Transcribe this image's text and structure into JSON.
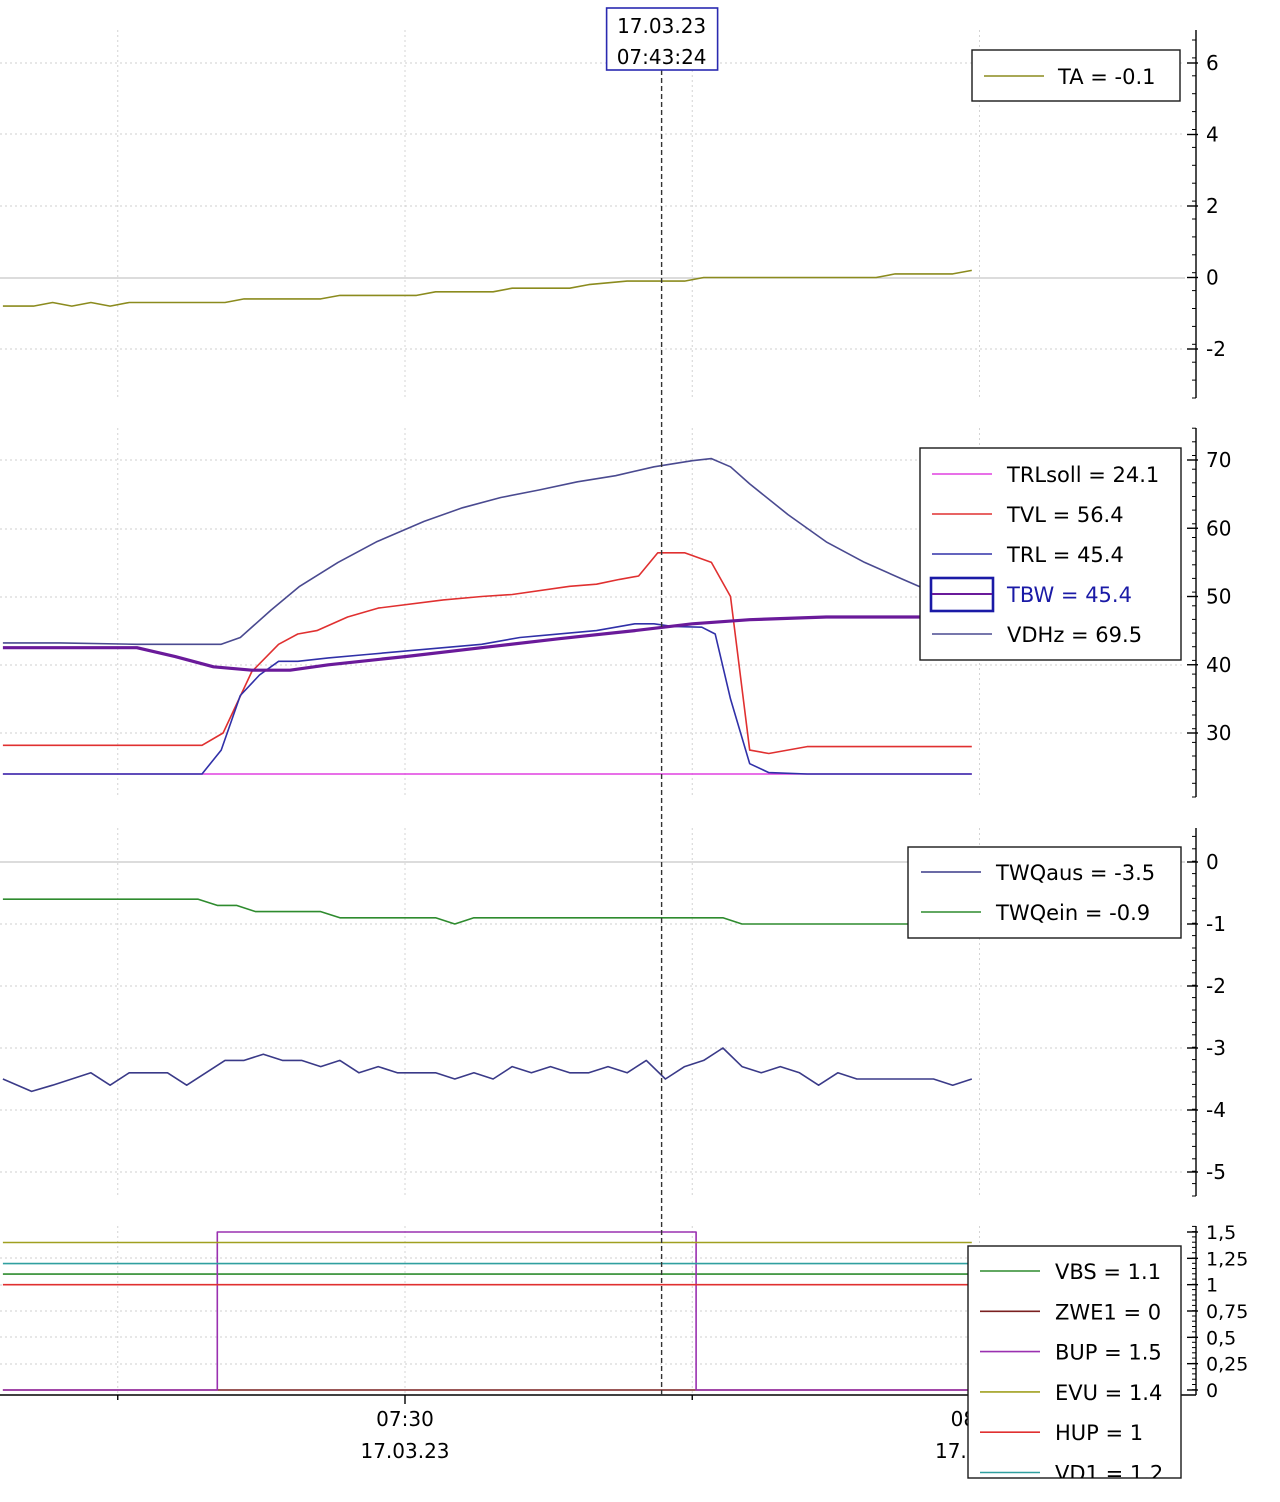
{
  "cursor": {
    "date": "17.03.23",
    "time": "07:43:24",
    "x_minutes": 43.4
  },
  "x_axis": {
    "ticks": [
      {
        "x": 30,
        "time": "07:30",
        "date": "17.03.23"
      },
      {
        "x": 60,
        "time": "08:00",
        "date": "17.03.23"
      }
    ]
  },
  "chart_data": [
    {
      "type": "line",
      "x_unit": "minutes after 07:00",
      "ylim": [
        -3.3,
        6.9
      ],
      "yticks": [
        "6",
        "4",
        "2",
        "0",
        "-2"
      ],
      "ytick_values": [
        6,
        4,
        2,
        0,
        -2
      ],
      "legend": "top-right",
      "series": [
        {
          "name": "TA = -0.1",
          "color": "#8b8b1e",
          "points": [
            [
              9,
              -0.8
            ],
            [
              10.6,
              -0.8
            ],
            [
              11.6,
              -0.7
            ],
            [
              12.6,
              -0.8
            ],
            [
              13.6,
              -0.7
            ],
            [
              14.6,
              -0.8
            ],
            [
              15.6,
              -0.7
            ],
            [
              20.6,
              -0.7
            ],
            [
              21.6,
              -0.6
            ],
            [
              25.6,
              -0.6
            ],
            [
              26.6,
              -0.5
            ],
            [
              30.6,
              -0.5
            ],
            [
              31.6,
              -0.4
            ],
            [
              34.6,
              -0.4
            ],
            [
              35.6,
              -0.3
            ],
            [
              38.6,
              -0.3
            ],
            [
              39.6,
              -0.2
            ],
            [
              41.6,
              -0.1
            ],
            [
              44.6,
              -0.1
            ],
            [
              45.6,
              0
            ],
            [
              54.6,
              0
            ],
            [
              55.6,
              0.1
            ],
            [
              58.6,
              0.1
            ],
            [
              59.6,
              0.2
            ]
          ]
        }
      ]
    },
    {
      "type": "line",
      "x_unit": "minutes after 07:00",
      "ylim": [
        21.5,
        75.5
      ],
      "yticks": [
        "70",
        "60",
        "50",
        "40",
        "30"
      ],
      "ytick_values": [
        70,
        60,
        50,
        40,
        30
      ],
      "legend": "right",
      "series": [
        {
          "name": "TRLsoll = 24.1",
          "color": "#e040e0",
          "points": [
            [
              9,
              24
            ],
            [
              59.6,
              24
            ]
          ]
        },
        {
          "name": "TVL = 56.4",
          "color": "#e03030",
          "points": [
            [
              9,
              28.2
            ],
            [
              19.4,
              28.2
            ],
            [
              20.5,
              30
            ],
            [
              22,
              39
            ],
            [
              23.4,
              43
            ],
            [
              24.4,
              44.5
            ],
            [
              25.4,
              45
            ],
            [
              27,
              47
            ],
            [
              28.6,
              48.3
            ],
            [
              32,
              49.5
            ],
            [
              34,
              50
            ],
            [
              35.6,
              50.3
            ],
            [
              38.6,
              51.5
            ],
            [
              40,
              51.8
            ],
            [
              41.2,
              52.5
            ],
            [
              42.2,
              53
            ],
            [
              43.2,
              56.4
            ],
            [
              44.6,
              56.4
            ],
            [
              46,
              55
            ],
            [
              47,
              50
            ],
            [
              48,
              27.5
            ],
            [
              49,
              27
            ],
            [
              51,
              28
            ],
            [
              59.6,
              28
            ]
          ]
        },
        {
          "name": "TRL = 45.4",
          "color": "#3030a8",
          "points": [
            [
              9,
              24
            ],
            [
              19.4,
              24
            ],
            [
              20.4,
              27.5
            ],
            [
              21.4,
              35.5
            ],
            [
              22.4,
              38.5
            ],
            [
              23.4,
              40.5
            ],
            [
              24.4,
              40.5
            ],
            [
              26,
              41
            ],
            [
              28,
              41.5
            ],
            [
              30,
              42
            ],
            [
              34,
              43
            ],
            [
              36,
              44
            ],
            [
              40,
              45
            ],
            [
              42,
              46
            ],
            [
              43,
              46
            ],
            [
              44,
              45.6
            ],
            [
              45.5,
              45.5
            ],
            [
              46.2,
              44.5
            ],
            [
              47,
              35
            ],
            [
              48,
              25.5
            ],
            [
              49,
              24.2
            ],
            [
              51,
              24
            ],
            [
              59.6,
              24
            ]
          ]
        },
        {
          "name": "TBW = 45.4",
          "color": "#6a1a9a",
          "width": 3.2,
          "points": [
            [
              9,
              42.5
            ],
            [
              16,
              42.5
            ],
            [
              18,
              41.2
            ],
            [
              20,
              39.7
            ],
            [
              22,
              39.2
            ],
            [
              24,
              39.2
            ],
            [
              26,
              40
            ],
            [
              30,
              41.2
            ],
            [
              34,
              42.5
            ],
            [
              38,
              43.8
            ],
            [
              42,
              45
            ],
            [
              45,
              46
            ],
            [
              48,
              46.6
            ],
            [
              52,
              47
            ],
            [
              56,
              47
            ],
            [
              59.6,
              47
            ]
          ]
        },
        {
          "name": "VDHz = 69.5",
          "color": "#4a4a90",
          "points": [
            [
              9,
              43.2
            ],
            [
              12,
              43.2
            ],
            [
              16,
              43
            ],
            [
              19,
              43
            ],
            [
              20.4,
              43
            ],
            [
              21.4,
              44
            ],
            [
              23,
              48
            ],
            [
              24.5,
              51.5
            ],
            [
              26.5,
              55
            ],
            [
              28.5,
              58
            ],
            [
              31,
              61
            ],
            [
              33,
              63
            ],
            [
              35,
              64.5
            ],
            [
              37,
              65.6
            ],
            [
              39,
              66.8
            ],
            [
              41,
              67.7
            ],
            [
              43,
              69
            ],
            [
              45,
              69.9
            ],
            [
              46,
              70.2
            ],
            [
              47,
              69
            ],
            [
              48,
              66.5
            ],
            [
              50,
              62
            ],
            [
              52,
              58
            ],
            [
              54,
              55
            ],
            [
              56,
              52.5
            ],
            [
              57.4,
              50.8
            ],
            [
              59,
              49.5
            ]
          ]
        }
      ]
    },
    {
      "type": "line",
      "x_unit": "minutes after 07:00",
      "ylim": [
        -5.5,
        0.55
      ],
      "yticks": [
        "0",
        "-1",
        "-2",
        "-3",
        "-4",
        "-5"
      ],
      "ytick_values": [
        0,
        -1,
        -2,
        -3,
        -4,
        -5
      ],
      "legend": "top-right",
      "series": [
        {
          "name": "TWQaus = -3.5",
          "color": "#3a3a88",
          "points": [
            [
              9,
              -3.5
            ],
            [
              10.5,
              -3.7
            ],
            [
              11.6,
              -3.6
            ],
            [
              13.6,
              -3.4
            ],
            [
              14.6,
              -3.6
            ],
            [
              15.6,
              -3.4
            ],
            [
              17.6,
              -3.4
            ],
            [
              18.6,
              -3.6
            ],
            [
              20.6,
              -3.2
            ],
            [
              21.6,
              -3.2
            ],
            [
              22.6,
              -3.1
            ],
            [
              23.6,
              -3.2
            ],
            [
              24.6,
              -3.2
            ],
            [
              25.6,
              -3.3
            ],
            [
              26.6,
              -3.2
            ],
            [
              27.6,
              -3.4
            ],
            [
              28.6,
              -3.3
            ],
            [
              29.6,
              -3.4
            ],
            [
              31.6,
              -3.4
            ],
            [
              32.6,
              -3.5
            ],
            [
              33.6,
              -3.4
            ],
            [
              34.6,
              -3.5
            ],
            [
              35.6,
              -3.3
            ],
            [
              36.6,
              -3.4
            ],
            [
              37.6,
              -3.3
            ],
            [
              38.6,
              -3.4
            ],
            [
              39.6,
              -3.4
            ],
            [
              40.6,
              -3.3
            ],
            [
              41.6,
              -3.4
            ],
            [
              42.6,
              -3.2
            ],
            [
              43.6,
              -3.5
            ],
            [
              44.6,
              -3.3
            ],
            [
              45.6,
              -3.2
            ],
            [
              46.6,
              -3
            ],
            [
              47.6,
              -3.3
            ],
            [
              48.6,
              -3.4
            ],
            [
              49.6,
              -3.3
            ],
            [
              50.6,
              -3.4
            ],
            [
              51.6,
              -3.6
            ],
            [
              52.6,
              -3.4
            ],
            [
              53.6,
              -3.5
            ],
            [
              57.6,
              -3.5
            ],
            [
              58.6,
              -3.6
            ],
            [
              59.6,
              -3.5
            ]
          ]
        },
        {
          "name": "TWQein = -0.9",
          "color": "#2e8b2e",
          "points": [
            [
              9,
              -0.6
            ],
            [
              19.2,
              -0.6
            ],
            [
              20.2,
              -0.7
            ],
            [
              21.2,
              -0.7
            ],
            [
              22.2,
              -0.8
            ],
            [
              25.6,
              -0.8
            ],
            [
              26.6,
              -0.9
            ],
            [
              30.6,
              -0.9
            ],
            [
              31.6,
              -0.9
            ],
            [
              32.6,
              -1
            ],
            [
              33.6,
              -0.9
            ],
            [
              46.6,
              -0.9
            ],
            [
              47.6,
              -1
            ],
            [
              59.6,
              -1
            ]
          ]
        }
      ]
    },
    {
      "type": "line",
      "x_unit": "minutes after 07:00",
      "ylim": [
        0,
        1.5
      ],
      "yticks": [
        "1,5",
        "1,25",
        "1",
        "0,75",
        "0,5",
        "0,25",
        "0"
      ],
      "ytick_values": [
        1.5,
        1.25,
        1,
        0.75,
        0.5,
        0.25,
        0
      ],
      "legend": "right",
      "series": [
        {
          "name": "VBS = 1.1",
          "color": "#2e8b2e",
          "points": [
            [
              9,
              1.1
            ],
            [
              59.6,
              1.1
            ]
          ]
        },
        {
          "name": "ZWE1 = 0",
          "color": "#7a2020",
          "points": [
            [
              9,
              0
            ],
            [
              59.6,
              0
            ]
          ]
        },
        {
          "name": "BUP = 1.5",
          "color": "#9a30b0",
          "points": [
            [
              9,
              0
            ],
            [
              20.2,
              0
            ],
            [
              20.2,
              1.5
            ],
            [
              45.2,
              1.5
            ],
            [
              45.2,
              0
            ],
            [
              59.6,
              0
            ]
          ]
        },
        {
          "name": "EVU = 1.4",
          "color": "#a0a020",
          "points": [
            [
              9,
              1.4
            ],
            [
              59.6,
              1.4
            ]
          ]
        },
        {
          "name": "HUP = 1",
          "color": "#e03030",
          "points": [
            [
              9,
              1
            ],
            [
              59.6,
              1
            ]
          ]
        },
        {
          "name": "VD1 = 1.2",
          "color": "#30a0a0",
          "points": [
            [
              9,
              1.2
            ],
            [
              59.6,
              1.2
            ]
          ]
        }
      ]
    }
  ]
}
